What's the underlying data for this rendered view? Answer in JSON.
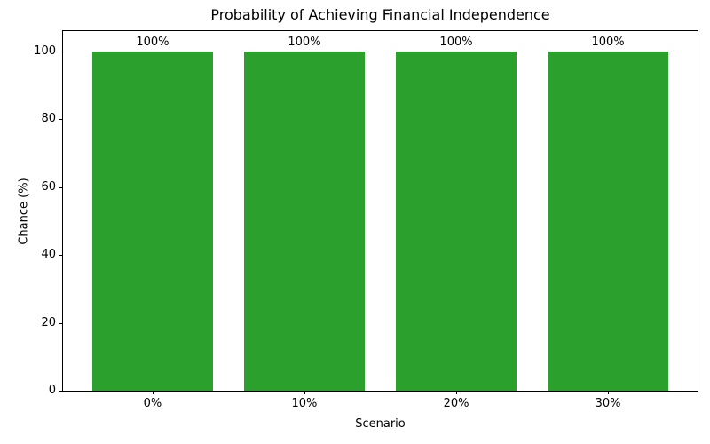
{
  "chart_data": {
    "type": "bar",
    "title": "Probability of Achieving Financial Independence",
    "xlabel": "Scenario",
    "ylabel": "Chance (%)",
    "categories": [
      "0%",
      "10%",
      "20%",
      "30%"
    ],
    "values": [
      100,
      100,
      100,
      100
    ],
    "bar_labels": [
      "100%",
      "100%",
      "100%",
      "100%"
    ],
    "yticks": [
      0,
      20,
      40,
      60,
      80,
      100
    ],
    "ylim": [
      0,
      106
    ],
    "xlim": [
      -0.59,
      3.59
    ],
    "bar_width_units": 0.8,
    "bar_color": "#2ca02c",
    "axis_color": "#000000",
    "background_color": "#ffffff",
    "grid": false,
    "legend": null
  }
}
